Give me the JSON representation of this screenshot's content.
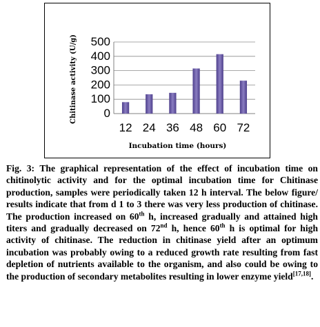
{
  "chart_data": {
    "type": "bar",
    "categories": [
      "12",
      "24",
      "36",
      "48",
      "60",
      "72"
    ],
    "values": [
      80,
      135,
      145,
      315,
      415,
      230
    ],
    "xlabel": "Incubation time (hours)",
    "ylabel": "Chitinase activity (U/g)",
    "ylim": [
      0,
      500
    ],
    "yticks": [
      0,
      100,
      200,
      300,
      400,
      500
    ],
    "grid": true,
    "colors": {
      "bar_light": "#8a7dc1",
      "bar_dark": "#4e3f8c",
      "grid": "#8c8c8c"
    }
  },
  "caption": {
    "lead": "Fig. 3:",
    "p1": " The graphical representation of the effect of incubation time on chitinolytic activity and for the optimal incubation time for Chitinase production, samples were periodically taken 12 h interval. The below figure/ results indicate that from d 1 to 3 there was very less production of chitinase. The production increased on 60",
    "sup1": "th",
    "p2": " h, increased gradually and attained high titers and gradually decreased on 72",
    "sup2": "nd",
    "p3": " h, hence 60",
    "sup3": "th",
    "p4": " h is optimal for high activity of chitinase. The reduction in chitinase yield after an optimum incubation was probably owing to a reduced growth rate resulting from fast depletion of nutrients available to the organism, and also could be owing to the production of secondary metabolites resulting in lower enzyme yield",
    "sup4": "[17,18]",
    "end": "."
  }
}
